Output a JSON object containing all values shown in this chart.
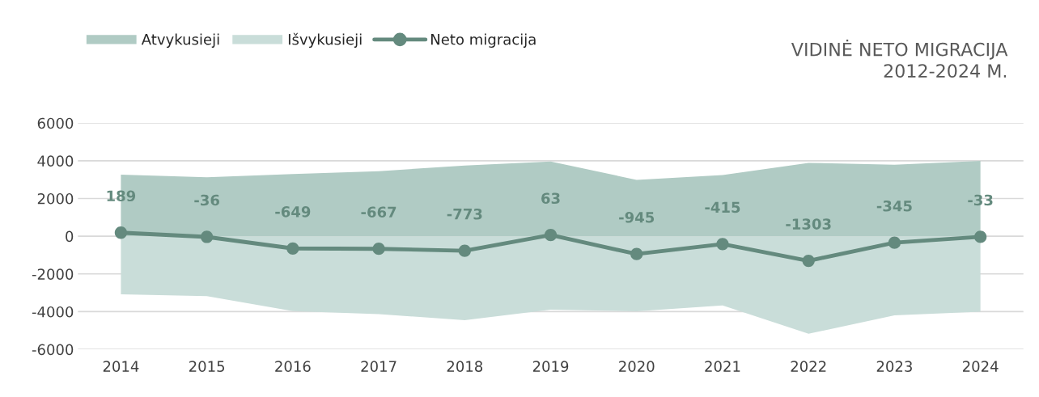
{
  "chart_data": {
    "type": "line",
    "title": "VIDINĖ NETO MIGRACIJA\n2012-2024 M.",
    "categories": [
      "2014",
      "2015",
      "2016",
      "2017",
      "2018",
      "2019",
      "2020",
      "2021",
      "2022",
      "2023",
      "2024"
    ],
    "series": [
      {
        "name": "Atvykusieji",
        "type": "area",
        "color": "#b0cbc4",
        "values": [
          3270,
          3130,
          3300,
          3450,
          3750,
          3960,
          2990,
          3240,
          3890,
          3790,
          3990
        ]
      },
      {
        "name": "Išvykusieji",
        "type": "area",
        "color": "#c9ddd9",
        "values": [
          -3080,
          -3180,
          -3970,
          -4130,
          -4450,
          -3900,
          -3980,
          -3670,
          -5170,
          -4200,
          -4000
        ]
      },
      {
        "name": "Neto migracija",
        "color": "#648a7e",
        "marker": "circle",
        "data_labels": true,
        "values": [
          189,
          -36,
          -649,
          -667,
          -773,
          63,
          -945,
          -415,
          -1303,
          -345,
          -33
        ]
      }
    ],
    "ylim": [
      -6000,
      6000
    ],
    "yticks": [
      -6000,
      -4000,
      -2000,
      0,
      2000,
      4000,
      6000
    ],
    "grid": "y",
    "legend": "top left"
  }
}
